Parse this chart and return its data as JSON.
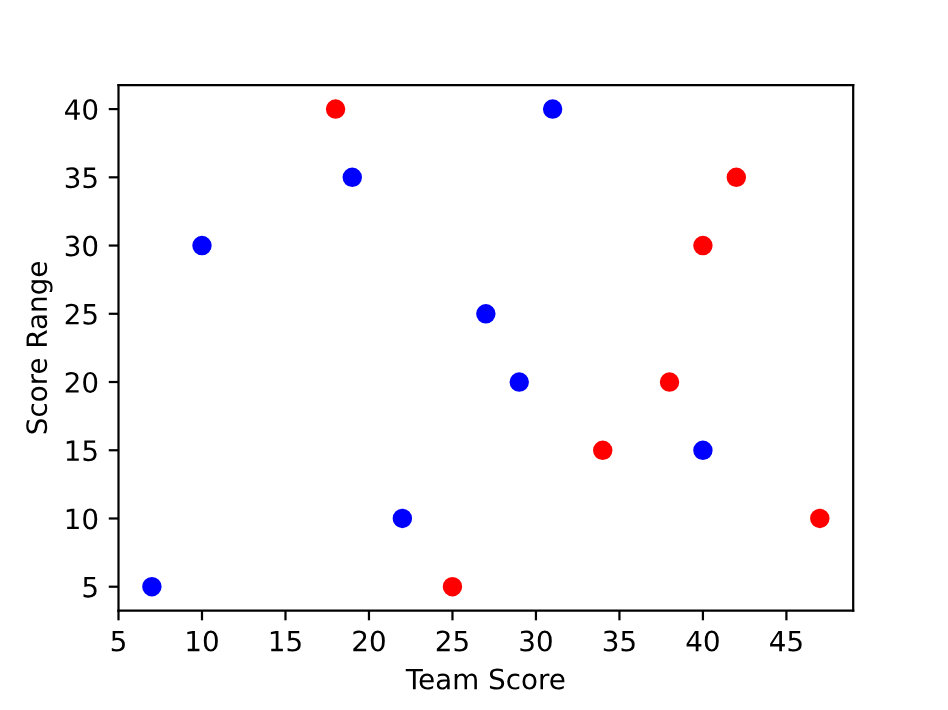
{
  "chart_data": {
    "type": "scatter",
    "xlabel": "Team Score",
    "ylabel": "Score Range",
    "series": [
      {
        "color": "#0000ff",
        "x": [
          7,
          10,
          19,
          22,
          27,
          29,
          31,
          40
        ],
        "values": [
          5,
          30,
          35,
          10,
          25,
          20,
          40,
          15
        ]
      },
      {
        "color": "#ff0000",
        "x": [
          18,
          25,
          34,
          38,
          40,
          42,
          47
        ],
        "values": [
          40,
          5,
          15,
          20,
          30,
          35,
          10
        ]
      }
    ],
    "xlim": [
      5,
      49
    ],
    "ylim": [
      3.25,
      41.75
    ],
    "xticks": [
      5,
      10,
      15,
      20,
      25,
      30,
      35,
      40,
      45
    ],
    "yticks": [
      5,
      10,
      15,
      20,
      25,
      30,
      35,
      40
    ],
    "marker": "circle",
    "grid": false,
    "legend": false
  }
}
